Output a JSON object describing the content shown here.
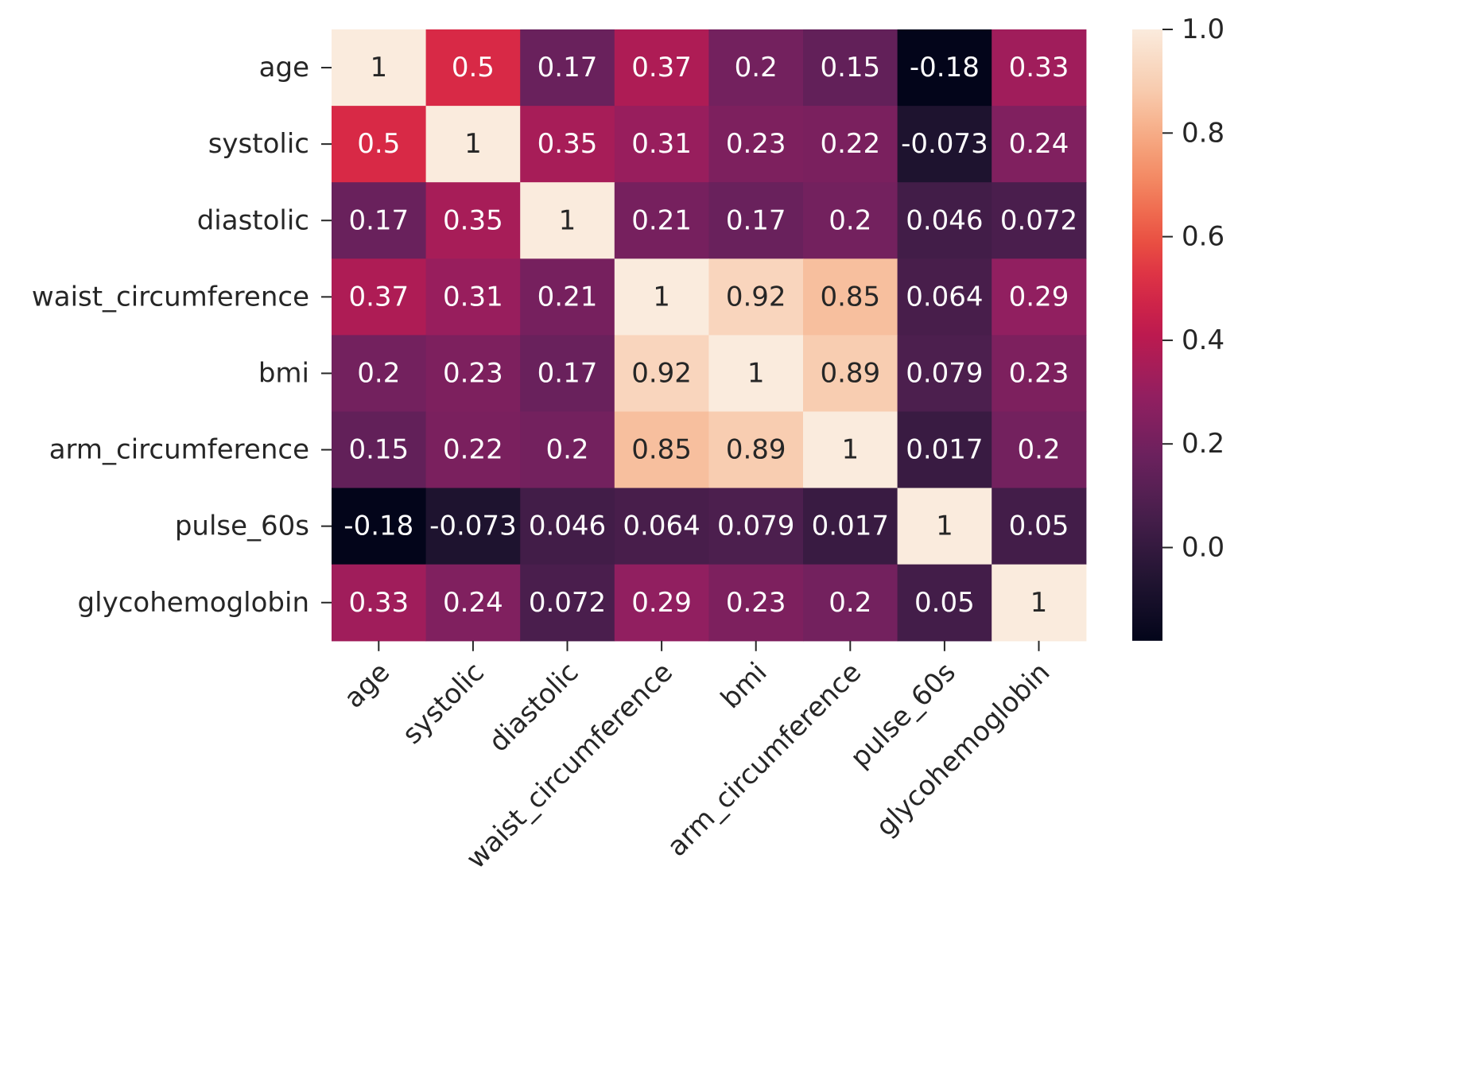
{
  "chart_data": {
    "type": "heatmap",
    "title": "",
    "xlabel": "",
    "ylabel": "",
    "rows": [
      "age",
      "systolic",
      "diastolic",
      "waist_circumference",
      "bmi",
      "arm_circumference",
      "pulse_60s",
      "glycohemoglobin"
    ],
    "columns": [
      "age",
      "systolic",
      "diastolic",
      "waist_circumference",
      "bmi",
      "arm_circumference",
      "pulse_60s",
      "glycohemoglobin"
    ],
    "values": [
      [
        1,
        0.5,
        0.17,
        0.37,
        0.2,
        0.15,
        -0.18,
        0.33
      ],
      [
        0.5,
        1,
        0.35,
        0.31,
        0.23,
        0.22,
        -0.073,
        0.24
      ],
      [
        0.17,
        0.35,
        1,
        0.21,
        0.17,
        0.2,
        0.046,
        0.072
      ],
      [
        0.37,
        0.31,
        0.21,
        1,
        0.92,
        0.85,
        0.064,
        0.29
      ],
      [
        0.2,
        0.23,
        0.17,
        0.92,
        1,
        0.89,
        0.079,
        0.23
      ],
      [
        0.15,
        0.22,
        0.2,
        0.85,
        0.89,
        1,
        0.017,
        0.2
      ],
      [
        -0.18,
        -0.073,
        0.046,
        0.064,
        0.079,
        0.017,
        1,
        0.05
      ],
      [
        0.33,
        0.24,
        0.072,
        0.29,
        0.23,
        0.2,
        0.05,
        1
      ]
    ],
    "labels": [
      [
        "1",
        "0.5",
        "0.17",
        "0.37",
        "0.2",
        "0.15",
        "-0.18",
        "0.33"
      ],
      [
        "0.5",
        "1",
        "0.35",
        "0.31",
        "0.23",
        "0.22",
        "-0.073",
        "0.24"
      ],
      [
        "0.17",
        "0.35",
        "1",
        "0.21",
        "0.17",
        "0.2",
        "0.046",
        "0.072"
      ],
      [
        "0.37",
        "0.31",
        "0.21",
        "1",
        "0.92",
        "0.85",
        "0.064",
        "0.29"
      ],
      [
        "0.2",
        "0.23",
        "0.17",
        "0.92",
        "1",
        "0.89",
        "0.079",
        "0.23"
      ],
      [
        "0.15",
        "0.22",
        "0.2",
        "0.85",
        "0.89",
        "1",
        "0.017",
        "0.2"
      ],
      [
        "-0.18",
        "-0.073",
        "0.046",
        "0.064",
        "0.079",
        "0.017",
        "1",
        "0.05"
      ],
      [
        "0.33",
        "0.24",
        "0.072",
        "0.29",
        "0.23",
        "0.2",
        "0.05",
        "1"
      ]
    ],
    "colormap": "rocket",
    "value_range": [
      -0.18,
      1.0
    ],
    "colorbar": {
      "ticks": [
        0.0,
        0.2,
        0.4,
        0.6,
        0.8,
        1.0
      ],
      "tick_labels": [
        "0.0",
        "0.2",
        "0.4",
        "0.6",
        "0.8",
        "1.0"
      ],
      "placement": "right"
    },
    "x_tick_rotation_deg": 45
  }
}
